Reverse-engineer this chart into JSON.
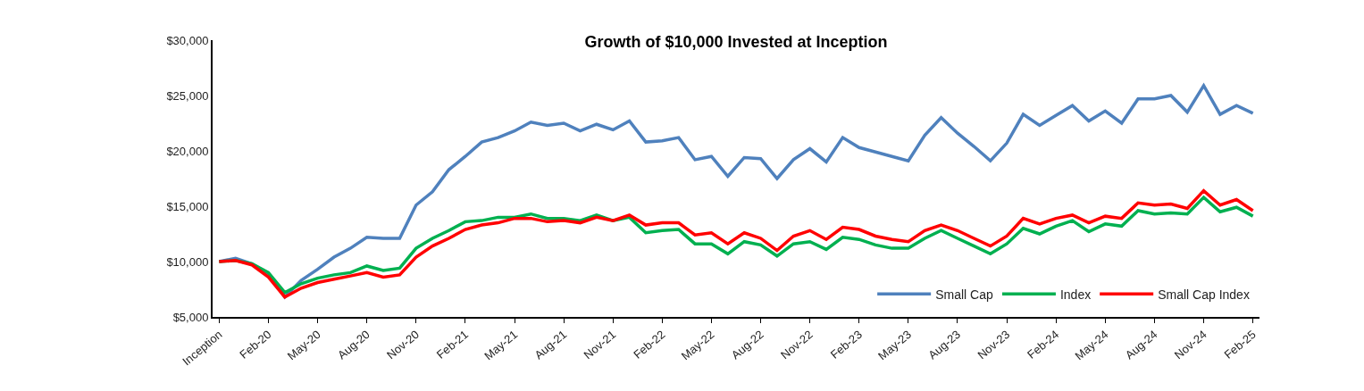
{
  "chart_data": {
    "type": "line",
    "title": "Growth of $10,000 Invested at Inception",
    "categories": [
      "Inception",
      null,
      null,
      "Feb-20",
      null,
      null,
      "May-20",
      null,
      null,
      "Aug-20",
      null,
      null,
      "Nov-20",
      null,
      null,
      "Feb-21",
      null,
      null,
      "May-21",
      null,
      null,
      "Aug-21",
      null,
      null,
      "Nov-21",
      null,
      null,
      "Feb-22",
      null,
      null,
      "May-22",
      null,
      null,
      "Aug-22",
      null,
      null,
      "Nov-22",
      null,
      null,
      "Feb-23",
      null,
      null,
      "May-23",
      null,
      null,
      "Aug-23",
      null,
      null,
      "Nov-23",
      null,
      null,
      "Feb-24",
      null,
      null,
      "May-24",
      null,
      null,
      "Aug-24",
      null,
      null,
      "Nov-24",
      null,
      null,
      "Feb-25"
    ],
    "series": [
      {
        "name": "Small Cap",
        "color": "#4f81bd",
        "values": [
          10000,
          10300,
          9800,
          8900,
          6800,
          8300,
          9300,
          10400,
          11200,
          12200,
          12100,
          12100,
          15100,
          16300,
          18300,
          19500,
          20800,
          21200,
          21800,
          22600,
          22300,
          22500,
          21800,
          22400,
          21900,
          22700,
          20800,
          20900,
          21200,
          19200,
          19500,
          17700,
          19400,
          19300,
          17500,
          19200,
          20200,
          19000,
          21200,
          20300,
          19900,
          19500,
          19100,
          21400,
          23000,
          21600,
          20400,
          19100,
          20700,
          23300,
          22300,
          23200,
          24100,
          22700,
          23600,
          22500,
          24700,
          24700,
          25000,
          23500,
          25900,
          23300,
          24100,
          23400
        ]
      },
      {
        "name": "Index",
        "color": "#00b050",
        "values": [
          10000,
          10100,
          9800,
          9000,
          7200,
          8000,
          8500,
          8800,
          9000,
          9600,
          9200,
          9400,
          11200,
          12100,
          12800,
          13600,
          13700,
          14000,
          14000,
          14300,
          13900,
          13900,
          13700,
          14200,
          13700,
          14000,
          12600,
          12800,
          12900,
          11600,
          11600,
          10700,
          11800,
          11500,
          10500,
          11600,
          11800,
          11100,
          12200,
          12000,
          11500,
          11200,
          11200,
          12100,
          12800,
          12100,
          11400,
          10700,
          11600,
          13000,
          12500,
          13200,
          13700,
          12700,
          13400,
          13200,
          14600,
          14300,
          14400,
          14300,
          15800,
          14500,
          14900,
          14100
        ]
      },
      {
        "name": "Small Cap Index",
        "color": "#ff0000",
        "values": [
          10000,
          10100,
          9700,
          8600,
          6800,
          7600,
          8100,
          8400,
          8700,
          9000,
          8600,
          8800,
          10400,
          11400,
          12100,
          12900,
          13300,
          13500,
          13900,
          13900,
          13600,
          13700,
          13500,
          14000,
          13700,
          14200,
          13300,
          13500,
          13500,
          12400,
          12600,
          11600,
          12600,
          12100,
          11000,
          12300,
          12800,
          12000,
          13100,
          12900,
          12300,
          12000,
          11800,
          12800,
          13300,
          12800,
          12100,
          11400,
          12300,
          13900,
          13400,
          13900,
          14200,
          13500,
          14100,
          13900,
          15300,
          15100,
          15200,
          14800,
          16400,
          15100,
          15600,
          14600
        ]
      }
    ],
    "ylim": [
      5000,
      30000
    ],
    "yticks": [
      {
        "value": 5000,
        "label": "$5,000"
      },
      {
        "value": 10000,
        "label": "$10,000"
      },
      {
        "value": 15000,
        "label": "$15,000"
      },
      {
        "value": 20000,
        "label": "$20,000"
      },
      {
        "value": 25000,
        "label": "$25,000"
      },
      {
        "value": 30000,
        "label": "$30,000"
      }
    ],
    "grid": false,
    "legend": "bottom right",
    "marker": "none",
    "line_style": "solid"
  }
}
